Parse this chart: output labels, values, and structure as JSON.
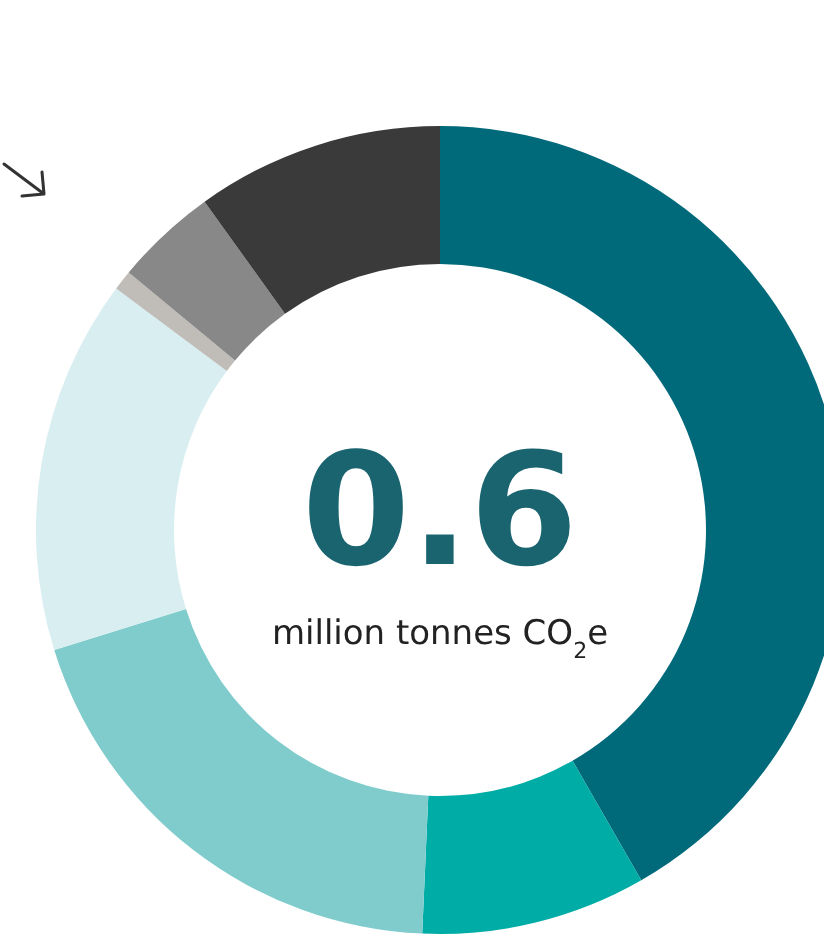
{
  "chart_data": {
    "type": "donut",
    "categories": [
      null,
      null,
      null,
      null,
      null,
      null,
      null
    ],
    "values": [
      41.7,
      9,
      19.5,
      15,
      0.8,
      4.1,
      9.9
    ],
    "colors": [
      "#00697a",
      "#00aca6",
      "#80cccc",
      "#d8eef0",
      "#c0bcb8",
      "#888888",
      "#3a3a3a"
    ],
    "annotations": [
      "0.6",
      "million tonnes CO$_{2}$e"
    ]
  }
}
